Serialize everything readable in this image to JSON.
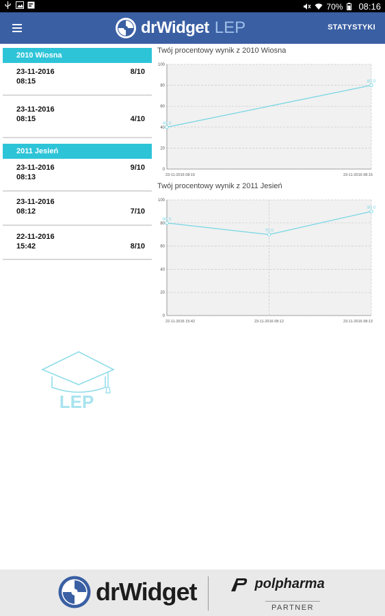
{
  "status_bar": {
    "battery_percent": "70%",
    "time": "08:16"
  },
  "app_bar": {
    "brand": "drWidget",
    "brand_sub": "LEP",
    "stats_button": "STATYSTYKI"
  },
  "sections": [
    {
      "title": "2010 Wiosna",
      "entries": [
        {
          "date": "23-11-2016",
          "time": "08:15",
          "score": "8/10"
        },
        {
          "date": "23-11-2016",
          "time": "08:15",
          "score": "4/10"
        }
      ]
    },
    {
      "title": "2011 Jesień",
      "entries": [
        {
          "date": "23-11-2016",
          "time": "08:13",
          "score": "9/10"
        },
        {
          "date": "23-11-2016",
          "time": "08:12",
          "score": "7/10"
        },
        {
          "date": "22-11-2016",
          "time": "15:42",
          "score": "8/10"
        }
      ]
    }
  ],
  "chart_data": [
    {
      "type": "line",
      "title": "Twój procentowy wynik z 2010 Wiosna",
      "x": [
        "23-11-2016 08:15",
        "23-11-2016 08:15"
      ],
      "values": [
        40.0,
        80.0
      ],
      "labels": [
        "40.0",
        "80.0"
      ],
      "ylim": [
        0,
        100
      ],
      "yticks": [
        0,
        20,
        40,
        60,
        80,
        100
      ],
      "grid": true,
      "color": "#7fd8e6"
    },
    {
      "type": "line",
      "title": "Twój procentowy wynik z 2011 Jesień",
      "x": [
        "22-11-2016 15:42",
        "23-11-2016 08:12",
        "23-11-2016 08:13"
      ],
      "values": [
        80.0,
        70.0,
        90.0
      ],
      "labels": [
        "80.0",
        "70.0",
        "90.0"
      ],
      "ylim": [
        0,
        100
      ],
      "yticks": [
        0,
        20,
        40,
        60,
        80,
        100
      ],
      "grid": true,
      "color": "#7fd8e6"
    }
  ],
  "center_logo": {
    "text": "LEP"
  },
  "footer": {
    "brand": "drWidget",
    "partner_name": "polpharma",
    "partner_label": "PARTNER"
  },
  "colors": {
    "app_bar": "#3a5fa3",
    "section_header": "#2ec4d8",
    "chart_line": "#7fd8e6"
  }
}
